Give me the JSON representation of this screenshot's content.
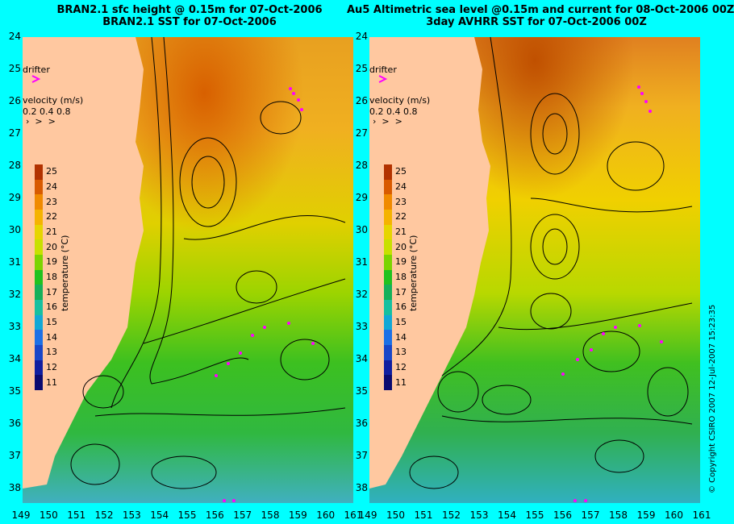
{
  "left_panel": {
    "title_line1": "BRAN2.1 sfc height @ 0.15m for 07-Oct-2006",
    "title_line2": "BRAN2.1 SST for 07-Oct-2006"
  },
  "right_panel": {
    "title_line1": "Au5 Altimetric sea level  @0.15m and current for 08-Oct-2006 00Z",
    "title_line2": "3day AVHRR SST for 07-Oct-2006 00Z"
  },
  "drifter_label": "drifter",
  "velocity_label": "velocity (m/s)",
  "velocity_scale": "0.2 0.4 0.8",
  "colorbar": {
    "title": "temperature (°C)",
    "labels": [
      "25",
      "24",
      "23",
      "22",
      "21",
      "20",
      "19",
      "18",
      "17",
      "16",
      "15",
      "14",
      "13",
      "12",
      "11"
    ],
    "colors": [
      "#b23200",
      "#d85a00",
      "#f08a00",
      "#f5b300",
      "#e6d500",
      "#c8e000",
      "#7cd400",
      "#1fc21f",
      "#14b05a",
      "#16c0a0",
      "#12a8d6",
      "#1c70e6",
      "#1846c8",
      "#101ea0",
      "#0a0a70"
    ]
  },
  "y_axis_labels": [
    "24",
    "25",
    "26",
    "27",
    "28",
    "29",
    "30",
    "31",
    "32",
    "33",
    "34",
    "35",
    "36",
    "37",
    "38"
  ],
  "x_axis_labels": [
    "149",
    "150",
    "151",
    "152",
    "153",
    "154",
    "155",
    "156",
    "157",
    "158",
    "159",
    "160",
    "161"
  ],
  "copyright": "© Copyright CSIRO 2007   12-Jul-2007 15:23:35",
  "colors": {
    "background": "#00ffff",
    "land": "#ffc8a0",
    "drifter_track": "#ff00ff"
  }
}
